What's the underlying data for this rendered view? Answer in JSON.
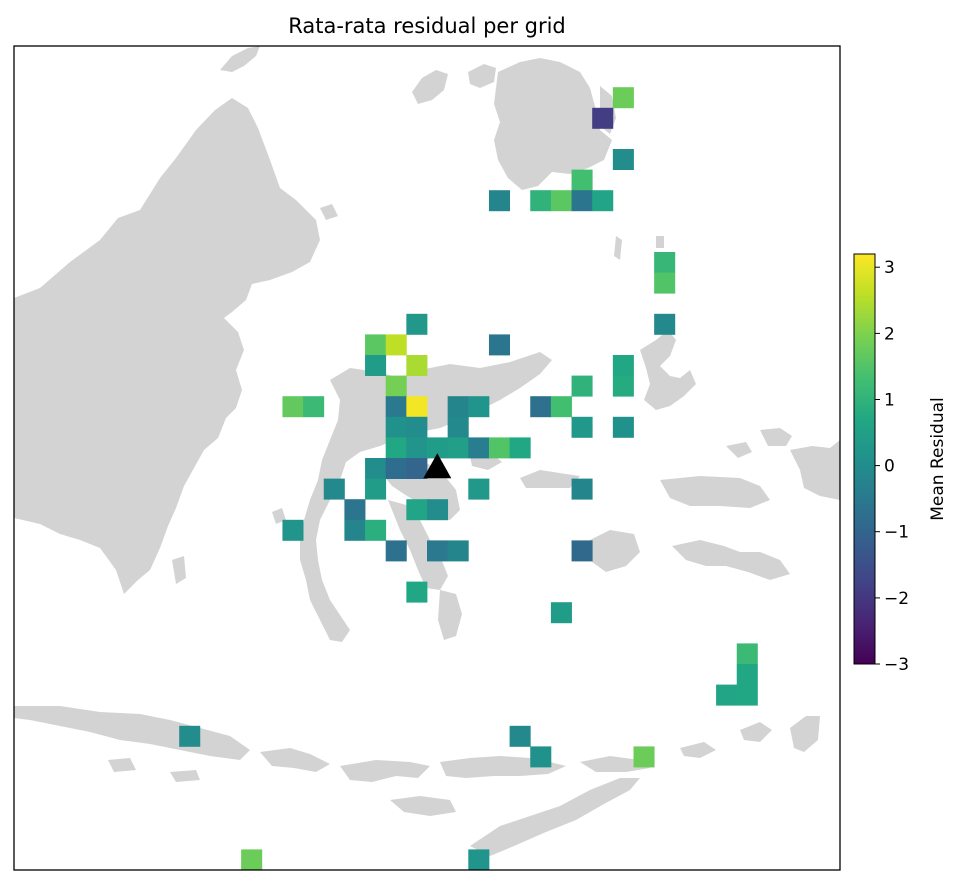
{
  "chart_data": {
    "type": "heatmap",
    "title": "Rata-rata residual per grid",
    "colorbar": {
      "label": "Mean Residual",
      "vmin": -3,
      "vmax": 3.2,
      "ticks": [
        "3",
        "2",
        "1",
        "0",
        "−1",
        "−2",
        "−3"
      ],
      "tick_values": [
        3,
        2,
        1,
        0,
        -1,
        -2,
        -3
      ],
      "colormap": "viridis"
    },
    "grid": {
      "columns": 40,
      "rows": 40,
      "cells": [
        {
          "col": 29,
          "row": 2,
          "value": 1.8
        },
        {
          "col": 28,
          "row": 3,
          "value": -1.9
        },
        {
          "col": 29,
          "row": 5,
          "value": 0.0
        },
        {
          "col": 27,
          "row": 6,
          "value": 1.3
        },
        {
          "col": 23,
          "row": 7,
          "value": -0.2
        },
        {
          "col": 25,
          "row": 7,
          "value": 1.0
        },
        {
          "col": 26,
          "row": 7,
          "value": 1.6
        },
        {
          "col": 27,
          "row": 7,
          "value": -0.6
        },
        {
          "col": 28,
          "row": 7,
          "value": 0.6
        },
        {
          "col": 31,
          "row": 10,
          "value": 1.1
        },
        {
          "col": 31,
          "row": 11,
          "value": 1.5
        },
        {
          "col": 19,
          "row": 13,
          "value": 0.3
        },
        {
          "col": 31,
          "row": 13,
          "value": -0.1
        },
        {
          "col": 17,
          "row": 14,
          "value": 1.6
        },
        {
          "col": 18,
          "row": 14,
          "value": 2.6
        },
        {
          "col": 23,
          "row": 14,
          "value": -0.6
        },
        {
          "col": 17,
          "row": 15,
          "value": 0.4
        },
        {
          "col": 19,
          "row": 15,
          "value": 2.4
        },
        {
          "col": 29,
          "row": 15,
          "value": 0.7
        },
        {
          "col": 18,
          "row": 16,
          "value": 1.9
        },
        {
          "col": 27,
          "row": 16,
          "value": 1.0
        },
        {
          "col": 29,
          "row": 16,
          "value": 0.8
        },
        {
          "col": 13,
          "row": 17,
          "value": 1.7
        },
        {
          "col": 14,
          "row": 17,
          "value": 1.2
        },
        {
          "col": 18,
          "row": 17,
          "value": -0.5
        },
        {
          "col": 19,
          "row": 17,
          "value": 3.1
        },
        {
          "col": 21,
          "row": 17,
          "value": -0.2
        },
        {
          "col": 22,
          "row": 17,
          "value": 0.2
        },
        {
          "col": 25,
          "row": 17,
          "value": -0.7
        },
        {
          "col": 26,
          "row": 17,
          "value": 1.3
        },
        {
          "col": 18,
          "row": 18,
          "value": 0.1
        },
        {
          "col": 19,
          "row": 18,
          "value": 0.0
        },
        {
          "col": 21,
          "row": 18,
          "value": -0.1
        },
        {
          "col": 27,
          "row": 18,
          "value": 0.3
        },
        {
          "col": 29,
          "row": 18,
          "value": 0.1
        },
        {
          "col": 18,
          "row": 19,
          "value": 0.7
        },
        {
          "col": 19,
          "row": 19,
          "value": 0.2
        },
        {
          "col": 20,
          "row": 19,
          "value": 0.4
        },
        {
          "col": 21,
          "row": 19,
          "value": 0.5
        },
        {
          "col": 22,
          "row": 19,
          "value": -0.4
        },
        {
          "col": 23,
          "row": 19,
          "value": 1.5
        },
        {
          "col": 24,
          "row": 19,
          "value": 0.7
        },
        {
          "col": 17,
          "row": 20,
          "value": 0.0
        },
        {
          "col": 18,
          "row": 20,
          "value": -0.8
        },
        {
          "col": 19,
          "row": 20,
          "value": -1.0
        },
        {
          "col": 15,
          "row": 21,
          "value": -0.1
        },
        {
          "col": 17,
          "row": 21,
          "value": 0.4
        },
        {
          "col": 22,
          "row": 21,
          "value": 0.3
        },
        {
          "col": 27,
          "row": 21,
          "value": -0.2
        },
        {
          "col": 16,
          "row": 22,
          "value": -0.6
        },
        {
          "col": 19,
          "row": 22,
          "value": 0.6
        },
        {
          "col": 20,
          "row": 22,
          "value": 0.0
        },
        {
          "col": 13,
          "row": 23,
          "value": 0.2
        },
        {
          "col": 16,
          "row": 23,
          "value": -0.2
        },
        {
          "col": 17,
          "row": 23,
          "value": 0.9
        },
        {
          "col": 18,
          "row": 24,
          "value": -0.7
        },
        {
          "col": 20,
          "row": 24,
          "value": -0.5
        },
        {
          "col": 21,
          "row": 24,
          "value": -0.2
        },
        {
          "col": 27,
          "row": 24,
          "value": -0.9
        },
        {
          "col": 19,
          "row": 26,
          "value": 0.7
        },
        {
          "col": 26,
          "row": 27,
          "value": 0.4
        },
        {
          "col": 35,
          "row": 29,
          "value": 1.2
        },
        {
          "col": 35,
          "row": 30,
          "value": 0.7
        },
        {
          "col": 34,
          "row": 31,
          "value": 0.6
        },
        {
          "col": 35,
          "row": 31,
          "value": 0.7
        },
        {
          "col": 8,
          "row": 33,
          "value": 0.0
        },
        {
          "col": 24,
          "row": 33,
          "value": -0.1
        },
        {
          "col": 25,
          "row": 34,
          "value": 0.1
        },
        {
          "col": 30,
          "row": 34,
          "value": 1.8
        },
        {
          "col": 11,
          "row": 39,
          "value": 1.8
        },
        {
          "col": 22,
          "row": 39,
          "value": 0.2
        }
      ]
    },
    "marker": {
      "shape": "triangle",
      "col": 20,
      "row": 20,
      "color": "#000000"
    },
    "basemap": {
      "land_color": "#d3d3d3"
    }
  }
}
